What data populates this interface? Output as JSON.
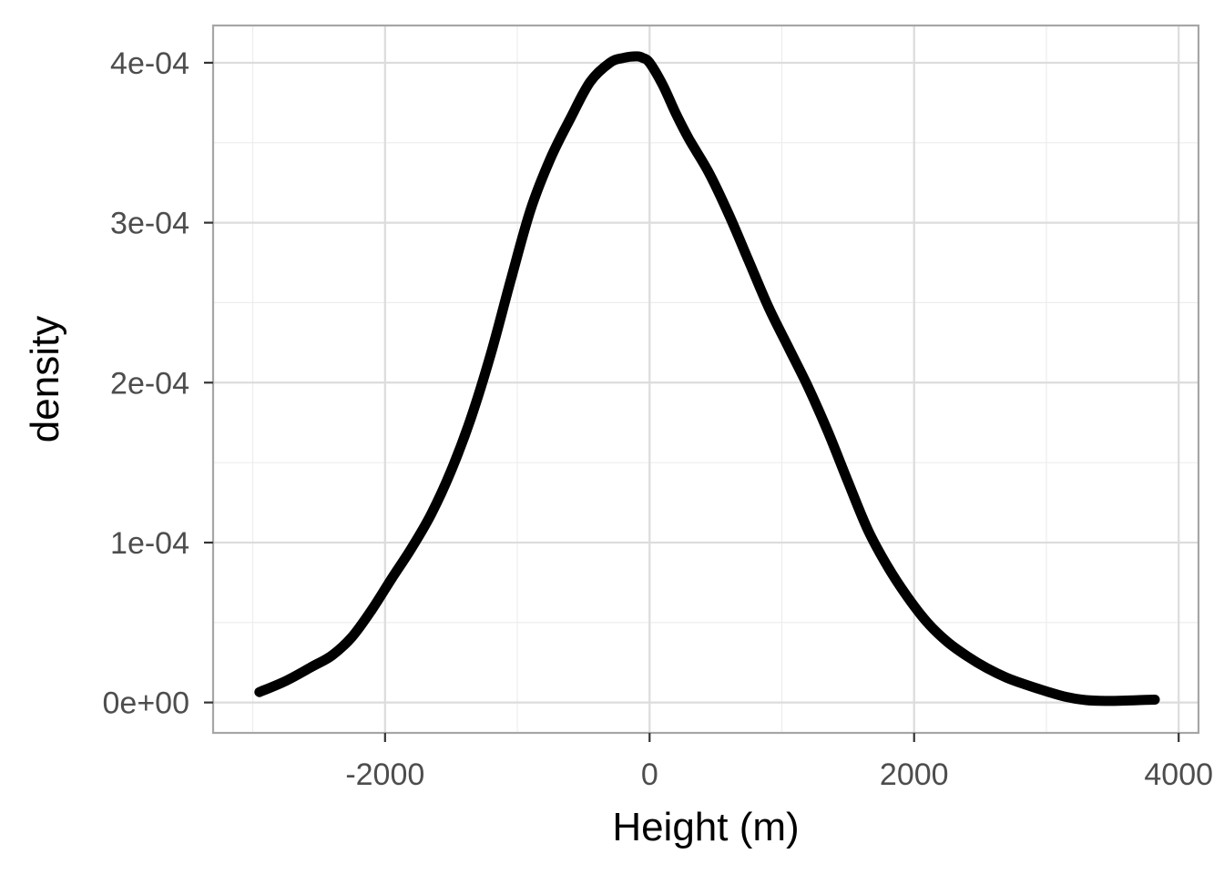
{
  "chart_data": {
    "type": "line",
    "title": "",
    "xlabel": "Height (m)",
    "ylabel": "density",
    "xlim": [
      -3300,
      4150
    ],
    "ylim": [
      -1.9e-05,
      0.0004233
    ],
    "x_ticks": [
      -2000,
      0,
      2000,
      4000
    ],
    "x_tick_labels": [
      "-2000",
      "0",
      "2000",
      "4000"
    ],
    "y_ticks": [
      0,
      0.0001,
      0.0002,
      0.0003,
      0.0004
    ],
    "y_tick_labels": [
      "0e+00",
      "1e-04",
      "2e-04",
      "3e-04",
      "4e-04"
    ],
    "grid": true,
    "line_color": "#000000",
    "series": [
      {
        "x": [
          -2950,
          -2750,
          -2550,
          -2400,
          -2250,
          -2100,
          -1950,
          -1800,
          -1650,
          -1500,
          -1350,
          -1200,
          -1050,
          -900,
          -750,
          -600,
          -450,
          -300,
          -200,
          -100,
          -50,
          0,
          100,
          200,
          300,
          450,
          600,
          750,
          900,
          1050,
          1200,
          1350,
          1500,
          1650,
          1800,
          1950,
          2100,
          2250,
          2400,
          2550,
          2700,
          2850,
          3000,
          3150,
          3300,
          3450,
          3600,
          3700,
          3820
        ],
        "y": [
          6.5e-06,
          1.35e-05,
          2.25e-05,
          2.95e-05,
          4.1e-05,
          5.8e-05,
          7.75e-05,
          9.65e-05,
          0.000118,
          0.000145,
          0.000178,
          0.000218,
          0.000264,
          0.000308,
          0.00034,
          0.000365,
          0.000388,
          0.0004,
          0.000403,
          0.000404,
          0.000403,
          0.0004,
          0.000386,
          0.000368,
          0.000352,
          0.000331,
          0.000305,
          0.000276,
          0.000247,
          0.000222,
          0.000197,
          0.000169,
          0.000138,
          0.000108,
          8.5e-05,
          6.6e-05,
          5e-05,
          3.8e-05,
          2.9e-05,
          2.15e-05,
          1.55e-05,
          1.1e-05,
          7e-06,
          3.5e-06,
          1.5e-06,
          1e-06,
          1.2e-06,
          1.5e-06,
          1.8e-06
        ]
      }
    ]
  }
}
